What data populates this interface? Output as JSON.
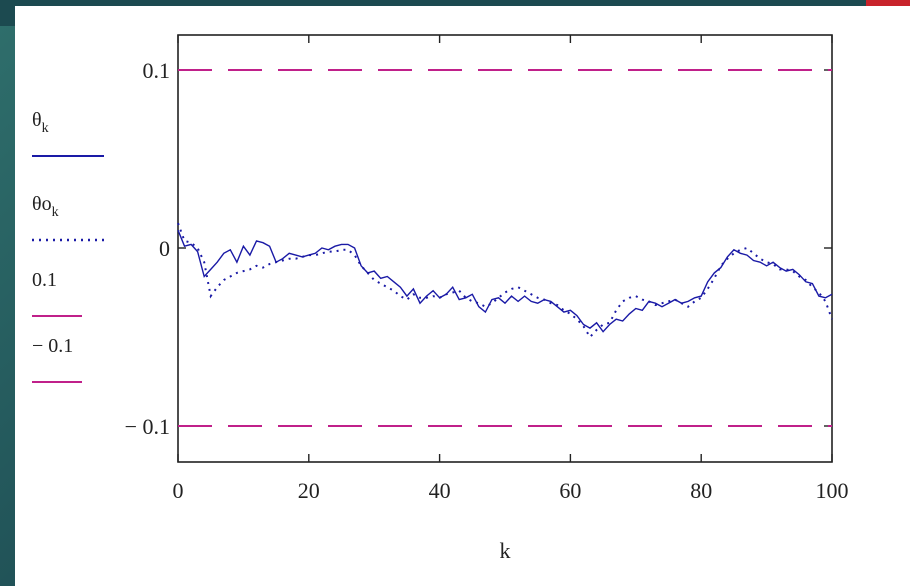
{
  "chart_data": {
    "type": "line",
    "title": "",
    "xlabel": "k",
    "ylabel": "",
    "xlim": [
      0,
      100
    ],
    "ylim": [
      -0.12,
      0.12
    ],
    "x_ticks": [
      "0",
      "20",
      "40",
      "60",
      "80",
      "100"
    ],
    "y_ticks": [
      {
        "value": 0.1,
        "label": "0.1"
      },
      {
        "value": 0,
        "label": "0"
      },
      {
        "value": -0.1,
        "label": "− 0.1"
      }
    ],
    "grid": false,
    "legend_position": "left",
    "series": [
      {
        "name": "θ_k",
        "legend_main": "θ",
        "legend_sub": "k",
        "style": "solid",
        "color": "#1a1aa6",
        "x": [
          0,
          1,
          2,
          3,
          4,
          5,
          6,
          7,
          8,
          9,
          10,
          11,
          12,
          13,
          14,
          15,
          16,
          17,
          18,
          19,
          20,
          21,
          22,
          23,
          24,
          25,
          26,
          27,
          28,
          29,
          30,
          31,
          32,
          33,
          34,
          35,
          36,
          37,
          38,
          39,
          40,
          41,
          42,
          43,
          44,
          45,
          46,
          47,
          48,
          49,
          50,
          51,
          52,
          53,
          54,
          55,
          56,
          57,
          58,
          59,
          60,
          61,
          62,
          63,
          64,
          65,
          66,
          67,
          68,
          69,
          70,
          71,
          72,
          73,
          74,
          75,
          76,
          77,
          78,
          79,
          80,
          81,
          82,
          83,
          84,
          85,
          86,
          87,
          88,
          89,
          90,
          91,
          92,
          93,
          94,
          95,
          96,
          97,
          98,
          99,
          100
        ],
        "values": [
          0.01,
          0.001,
          0.002,
          -0.002,
          -0.016,
          -0.012,
          -0.008,
          -0.003,
          -0.001,
          -0.008,
          0.001,
          -0.004,
          0.004,
          0.003,
          0.001,
          -0.008,
          -0.006,
          -0.003,
          -0.004,
          -0.005,
          -0.004,
          -0.003,
          0.0,
          -0.001,
          0.001,
          0.002,
          0.002,
          0.0,
          -0.01,
          -0.014,
          -0.013,
          -0.017,
          -0.016,
          -0.019,
          -0.022,
          -0.027,
          -0.023,
          -0.031,
          -0.027,
          -0.024,
          -0.028,
          -0.026,
          -0.022,
          -0.029,
          -0.028,
          -0.026,
          -0.033,
          -0.036,
          -0.029,
          -0.028,
          -0.031,
          -0.027,
          -0.03,
          -0.027,
          -0.03,
          -0.031,
          -0.029,
          -0.03,
          -0.033,
          -0.036,
          -0.035,
          -0.038,
          -0.043,
          -0.045,
          -0.042,
          -0.047,
          -0.043,
          -0.04,
          -0.041,
          -0.037,
          -0.034,
          -0.035,
          -0.03,
          -0.031,
          -0.033,
          -0.031,
          -0.029,
          -0.031,
          -0.03,
          -0.028,
          -0.027,
          -0.019,
          -0.014,
          -0.011,
          -0.005,
          -0.001,
          -0.003,
          -0.004,
          -0.007,
          -0.008,
          -0.01,
          -0.008,
          -0.011,
          -0.013,
          -0.012,
          -0.015,
          -0.019,
          -0.02,
          -0.027,
          -0.028,
          -0.026
        ]
      },
      {
        "name": "θo_k",
        "legend_main": "θo",
        "legend_sub": "k",
        "style": "dotted",
        "color": "#1a1aa6",
        "x": [
          0,
          1,
          2,
          3,
          4,
          5,
          6,
          7,
          8,
          9,
          10,
          11,
          12,
          13,
          14,
          15,
          16,
          17,
          18,
          19,
          20,
          21,
          22,
          23,
          24,
          25,
          26,
          27,
          28,
          29,
          30,
          31,
          32,
          33,
          34,
          35,
          36,
          37,
          38,
          39,
          40,
          41,
          42,
          43,
          44,
          45,
          46,
          47,
          48,
          49,
          50,
          51,
          52,
          53,
          54,
          55,
          56,
          57,
          58,
          59,
          60,
          61,
          62,
          63,
          64,
          65,
          66,
          67,
          68,
          69,
          70,
          71,
          72,
          73,
          74,
          75,
          76,
          77,
          78,
          79,
          80,
          81,
          82,
          83,
          84,
          85,
          86,
          87,
          88,
          89,
          90,
          91,
          92,
          93,
          94,
          95,
          96,
          97,
          98,
          99,
          100
        ],
        "values": [
          0.014,
          0.004,
          0.003,
          0.0,
          -0.008,
          -0.027,
          -0.022,
          -0.018,
          -0.016,
          -0.014,
          -0.013,
          -0.012,
          -0.01,
          -0.011,
          -0.009,
          -0.008,
          -0.007,
          -0.006,
          -0.006,
          -0.005,
          -0.004,
          -0.004,
          -0.003,
          -0.002,
          -0.002,
          -0.001,
          -0.001,
          -0.004,
          -0.01,
          -0.014,
          -0.018,
          -0.02,
          -0.022,
          -0.024,
          -0.027,
          -0.029,
          -0.026,
          -0.028,
          -0.028,
          -0.027,
          -0.028,
          -0.026,
          -0.025,
          -0.024,
          -0.028,
          -0.03,
          -0.031,
          -0.033,
          -0.031,
          -0.028,
          -0.025,
          -0.023,
          -0.022,
          -0.024,
          -0.026,
          -0.028,
          -0.029,
          -0.031,
          -0.032,
          -0.035,
          -0.037,
          -0.04,
          -0.044,
          -0.05,
          -0.046,
          -0.043,
          -0.042,
          -0.035,
          -0.03,
          -0.028,
          -0.027,
          -0.029,
          -0.03,
          -0.032,
          -0.031,
          -0.03,
          -0.029,
          -0.031,
          -0.033,
          -0.03,
          -0.028,
          -0.023,
          -0.017,
          -0.01,
          -0.006,
          -0.003,
          -0.001,
          0.0,
          -0.003,
          -0.006,
          -0.008,
          -0.009,
          -0.012,
          -0.012,
          -0.013,
          -0.016,
          -0.018,
          -0.022,
          -0.025,
          -0.03,
          -0.04
        ]
      },
      {
        "name": "0.1",
        "legend_main": "0.1",
        "style": "dashed",
        "color": "#c0208a",
        "x": [
          0,
          100
        ],
        "values": [
          0.1,
          0.1
        ]
      },
      {
        "name": "− 0.1",
        "legend_main": "− 0.1",
        "style": "dashed",
        "color": "#c0208a",
        "x": [
          0,
          100
        ],
        "values": [
          -0.1,
          -0.1
        ]
      }
    ]
  }
}
